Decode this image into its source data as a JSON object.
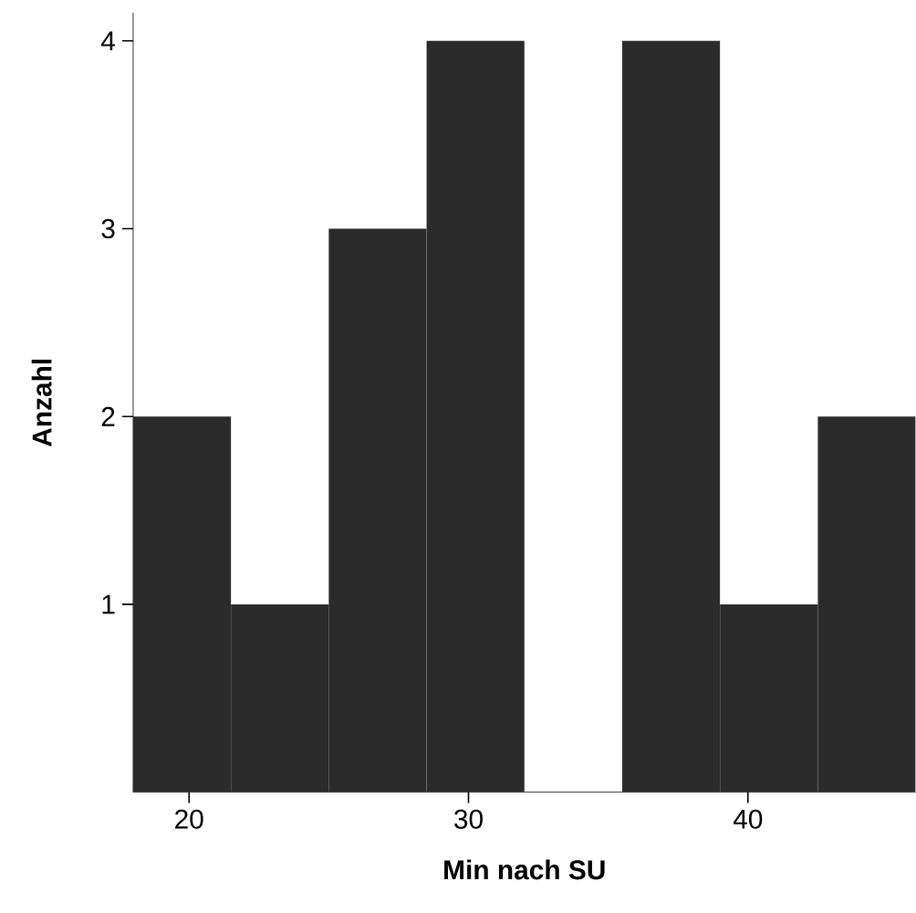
{
  "chart_data": {
    "type": "histogram",
    "xlabel": "Min nach SU",
    "ylabel": "Anzahl",
    "bins": [
      18,
      21.5,
      25,
      28.5,
      32,
      35.5,
      39,
      42.5,
      46
    ],
    "values": [
      2,
      1,
      3,
      4,
      0,
      4,
      1,
      2
    ],
    "color": "#2b2b2b",
    "xlim": [
      18,
      46
    ],
    "ylim": [
      0,
      4.15
    ],
    "xticks": [
      20,
      30,
      40
    ],
    "yticks": [
      1,
      2,
      3,
      4
    ]
  }
}
